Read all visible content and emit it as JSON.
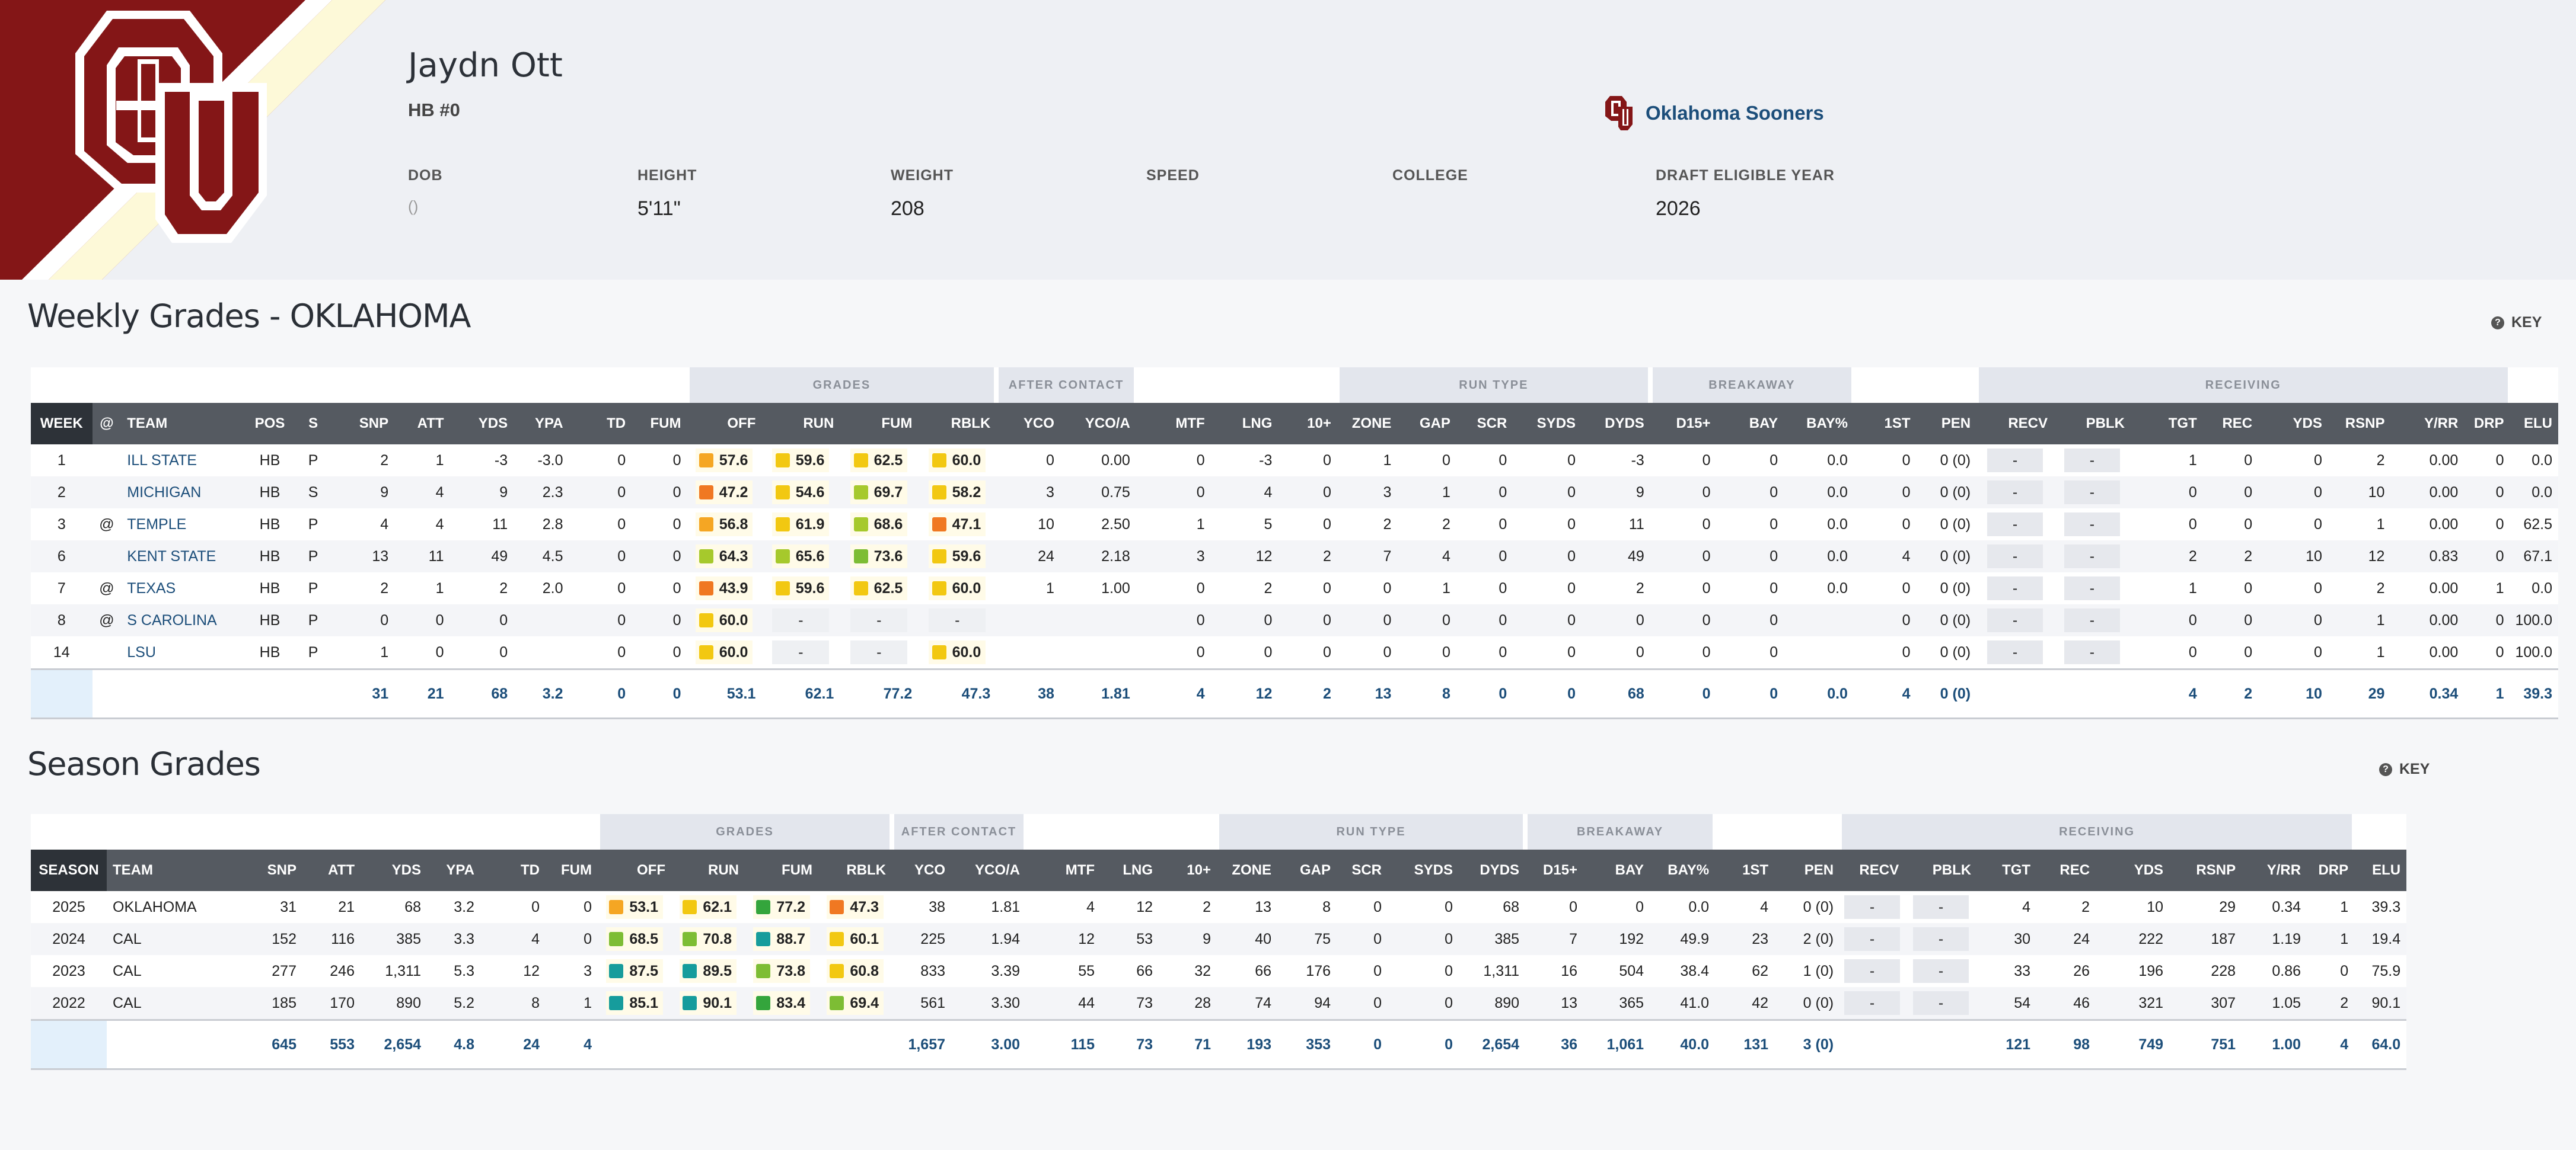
{
  "player": {
    "name": "Jaydn Ott",
    "position": "HB #0",
    "team": "Oklahoma Sooners",
    "info": [
      {
        "label": "DOB",
        "value": "()"
      },
      {
        "label": "HEIGHT",
        "value": "5'11\""
      },
      {
        "label": "WEIGHT",
        "value": "208"
      },
      {
        "label": "SPEED",
        "value": ""
      },
      {
        "label": "COLLEGE",
        "value": ""
      },
      {
        "label": "DRAFT ELIGIBLE YEAR",
        "value": "2026"
      }
    ]
  },
  "colors": {
    "brand": "#841617",
    "cream": "#fdf9d8",
    "grade_orange_dark": "#f07822",
    "grade_orange": "#f5a623",
    "grade_yellow": "#f2c811",
    "grade_yellowgreen": "#a6c92c",
    "grade_green": "#7dbd34",
    "grade_darkgreen": "#34a53c",
    "grade_teal": "#169c9c",
    "link": "#1c4e7a"
  },
  "key_label": "KEY",
  "weekly": {
    "title": "Weekly Grades - OKLAHOMA",
    "groups": {
      "grades": "GRADES",
      "after_contact": "AFTER CONTACT",
      "run_type": "RUN TYPE",
      "breakaway": "BREAKAWAY",
      "receiving": "RECEIVING"
    },
    "columns": [
      "WEEK",
      "@",
      "TEAM",
      "POS",
      "S",
      "SNP",
      "ATT",
      "YDS",
      "YPA",
      "TD",
      "FUM",
      "OFF",
      "RUN",
      "FUM",
      "RBLK",
      "YCO",
      "YCO/A",
      "MTF",
      "LNG",
      "10+",
      "ZONE",
      "GAP",
      "SCR",
      "SYDS",
      "DYDS",
      "D15+",
      "BAY",
      "BAY%",
      "1ST",
      "PEN",
      "RECV",
      "PBLK",
      "TGT",
      "REC",
      "YDS",
      "RSNP",
      "Y/RR",
      "DRP",
      "ELU"
    ],
    "rows": [
      [
        "1",
        "",
        "ILL STATE",
        "HB",
        "P",
        "2",
        "1",
        "-3",
        "-3.0",
        "0",
        "0",
        {
          "v": "57.6",
          "c": "grade_orange"
        },
        {
          "v": "59.6",
          "c": "grade_yellow"
        },
        {
          "v": "62.5",
          "c": "grade_yellow"
        },
        {
          "v": "60.0",
          "c": "grade_yellow"
        },
        "0",
        "0.00",
        "0",
        "-3",
        "0",
        "1",
        "0",
        "0",
        "0",
        "-3",
        "0",
        "0",
        "0.0",
        "0",
        "0 (0)",
        "-",
        "-",
        "1",
        "0",
        "0",
        "2",
        "0.00",
        "0",
        "0.0"
      ],
      [
        "2",
        "",
        "MICHIGAN",
        "HB",
        "S",
        "9",
        "4",
        "9",
        "2.3",
        "0",
        "0",
        {
          "v": "47.2",
          "c": "grade_orange_dark"
        },
        {
          "v": "54.6",
          "c": "grade_yellow"
        },
        {
          "v": "69.7",
          "c": "grade_yellowgreen"
        },
        {
          "v": "58.2",
          "c": "grade_yellow"
        },
        "3",
        "0.75",
        "0",
        "4",
        "0",
        "3",
        "1",
        "0",
        "0",
        "9",
        "0",
        "0",
        "0.0",
        "0",
        "0 (0)",
        "-",
        "-",
        "0",
        "0",
        "0",
        "10",
        "0.00",
        "0",
        "0.0"
      ],
      [
        "3",
        "@",
        "TEMPLE",
        "HB",
        "P",
        "4",
        "4",
        "11",
        "2.8",
        "0",
        "0",
        {
          "v": "56.8",
          "c": "grade_orange"
        },
        {
          "v": "61.9",
          "c": "grade_yellow"
        },
        {
          "v": "68.6",
          "c": "grade_yellowgreen"
        },
        {
          "v": "47.1",
          "c": "grade_orange_dark"
        },
        "10",
        "2.50",
        "1",
        "5",
        "0",
        "2",
        "2",
        "0",
        "0",
        "11",
        "0",
        "0",
        "0.0",
        "0",
        "0 (0)",
        "-",
        "-",
        "0",
        "0",
        "0",
        "1",
        "0.00",
        "0",
        "62.5"
      ],
      [
        "6",
        "",
        "KENT STATE",
        "HB",
        "P",
        "13",
        "11",
        "49",
        "4.5",
        "0",
        "0",
        {
          "v": "64.3",
          "c": "grade_yellowgreen"
        },
        {
          "v": "65.6",
          "c": "grade_yellowgreen"
        },
        {
          "v": "73.6",
          "c": "grade_green"
        },
        {
          "v": "59.6",
          "c": "grade_yellow"
        },
        "24",
        "2.18",
        "3",
        "12",
        "2",
        "7",
        "4",
        "0",
        "0",
        "49",
        "0",
        "0",
        "0.0",
        "4",
        "0 (0)",
        "-",
        "-",
        "2",
        "2",
        "10",
        "12",
        "0.83",
        "0",
        "67.1"
      ],
      [
        "7",
        "@",
        "TEXAS",
        "HB",
        "P",
        "2",
        "1",
        "2",
        "2.0",
        "0",
        "0",
        {
          "v": "43.9",
          "c": "grade_orange_dark"
        },
        {
          "v": "59.6",
          "c": "grade_yellow"
        },
        {
          "v": "62.5",
          "c": "grade_yellow"
        },
        {
          "v": "60.0",
          "c": "grade_yellow"
        },
        "1",
        "1.00",
        "0",
        "2",
        "0",
        "0",
        "1",
        "0",
        "0",
        "2",
        "0",
        "0",
        "0.0",
        "0",
        "0 (0)",
        "-",
        "-",
        "1",
        "0",
        "0",
        "2",
        "0.00",
        "1",
        "0.0"
      ],
      [
        "8",
        "@",
        "S CAROLINA",
        "HB",
        "P",
        "0",
        "0",
        "0",
        "",
        "0",
        "0",
        {
          "v": "60.0",
          "c": "grade_yellow"
        },
        {
          "v": "-"
        },
        {
          "v": "-"
        },
        {
          "v": "-"
        },
        "",
        "",
        "0",
        "0",
        "0",
        "0",
        "0",
        "0",
        "0",
        "0",
        "0",
        "0",
        "",
        "0",
        "0 (0)",
        "-",
        "-",
        "0",
        "0",
        "0",
        "1",
        "0.00",
        "0",
        "100.0"
      ],
      [
        "14",
        "",
        "LSU",
        "HB",
        "P",
        "1",
        "0",
        "0",
        "",
        "0",
        "0",
        {
          "v": "60.0",
          "c": "grade_yellow"
        },
        {
          "v": "-"
        },
        {
          "v": "-"
        },
        {
          "v": "60.0",
          "c": "grade_yellow"
        },
        "",
        "",
        "0",
        "0",
        "0",
        "0",
        "0",
        "0",
        "0",
        "0",
        "0",
        "0",
        "",
        "0",
        "0 (0)",
        "-",
        "-",
        "0",
        "0",
        "0",
        "1",
        "0.00",
        "0",
        "100.0"
      ]
    ],
    "totals": [
      "",
      "",
      "",
      "",
      "",
      "31",
      "21",
      "68",
      "3.2",
      "0",
      "0",
      "53.1",
      "62.1",
      "77.2",
      "47.3",
      "38",
      "1.81",
      "4",
      "12",
      "2",
      "13",
      "8",
      "0",
      "0",
      "68",
      "0",
      "0",
      "0.0",
      "4",
      "0 (0)",
      "",
      "",
      "4",
      "2",
      "10",
      "29",
      "0.34",
      "1",
      "39.3"
    ]
  },
  "season": {
    "title": "Season Grades",
    "groups": {
      "grades": "GRADES",
      "after_contact": "AFTER CONTACT",
      "run_type": "RUN TYPE",
      "breakaway": "BREAKAWAY",
      "receiving": "RECEIVING"
    },
    "columns": [
      "SEASON",
      "TEAM",
      "SNP",
      "ATT",
      "YDS",
      "YPA",
      "TD",
      "FUM",
      "OFF",
      "RUN",
      "FUM",
      "RBLK",
      "YCO",
      "YCO/A",
      "MTF",
      "LNG",
      "10+",
      "ZONE",
      "GAP",
      "SCR",
      "SYDS",
      "DYDS",
      "D15+",
      "BAY",
      "BAY%",
      "1ST",
      "PEN",
      "RECV",
      "PBLK",
      "TGT",
      "REC",
      "YDS",
      "RSNP",
      "Y/RR",
      "DRP",
      "ELU"
    ],
    "rows": [
      [
        "2025",
        "OKLAHOMA",
        "31",
        "21",
        "68",
        "3.2",
        "0",
        "0",
        {
          "v": "53.1",
          "c": "grade_orange"
        },
        {
          "v": "62.1",
          "c": "grade_yellow"
        },
        {
          "v": "77.2",
          "c": "grade_darkgreen"
        },
        {
          "v": "47.3",
          "c": "grade_orange_dark"
        },
        "38",
        "1.81",
        "4",
        "12",
        "2",
        "13",
        "8",
        "0",
        "0",
        "68",
        "0",
        "0",
        "0.0",
        "4",
        "0 (0)",
        "-",
        "-",
        "4",
        "2",
        "10",
        "29",
        "0.34",
        "1",
        "39.3"
      ],
      [
        "2024",
        "CAL",
        "152",
        "116",
        "385",
        "3.3",
        "4",
        "0",
        {
          "v": "68.5",
          "c": "grade_green"
        },
        {
          "v": "70.8",
          "c": "grade_green"
        },
        {
          "v": "88.7",
          "c": "grade_teal"
        },
        {
          "v": "60.1",
          "c": "grade_yellow"
        },
        "225",
        "1.94",
        "12",
        "53",
        "9",
        "40",
        "75",
        "0",
        "0",
        "385",
        "7",
        "192",
        "49.9",
        "23",
        "2 (0)",
        "-",
        "-",
        "30",
        "24",
        "222",
        "187",
        "1.19",
        "1",
        "19.4"
      ],
      [
        "2023",
        "CAL",
        "277",
        "246",
        "1,311",
        "5.3",
        "12",
        "3",
        {
          "v": "87.5",
          "c": "grade_teal"
        },
        {
          "v": "89.5",
          "c": "grade_teal"
        },
        {
          "v": "73.8",
          "c": "grade_green"
        },
        {
          "v": "60.8",
          "c": "grade_yellow"
        },
        "833",
        "3.39",
        "55",
        "66",
        "32",
        "66",
        "176",
        "0",
        "0",
        "1,311",
        "16",
        "504",
        "38.4",
        "62",
        "1 (0)",
        "-",
        "-",
        "33",
        "26",
        "196",
        "228",
        "0.86",
        "0",
        "75.9"
      ],
      [
        "2022",
        "CAL",
        "185",
        "170",
        "890",
        "5.2",
        "8",
        "1",
        {
          "v": "85.1",
          "c": "grade_teal"
        },
        {
          "v": "90.1",
          "c": "grade_teal"
        },
        {
          "v": "83.4",
          "c": "grade_darkgreen"
        },
        {
          "v": "69.4",
          "c": "grade_green"
        },
        "561",
        "3.30",
        "44",
        "73",
        "28",
        "74",
        "94",
        "0",
        "0",
        "890",
        "13",
        "365",
        "41.0",
        "42",
        "0 (0)",
        "-",
        "-",
        "54",
        "46",
        "321",
        "307",
        "1.05",
        "2",
        "90.1"
      ]
    ],
    "totals": [
      "",
      "",
      "645",
      "553",
      "2,654",
      "4.8",
      "24",
      "4",
      "",
      "",
      "",
      "",
      "1,657",
      "3.00",
      "115",
      "73",
      "71",
      "193",
      "353",
      "0",
      "0",
      "2,654",
      "36",
      "1,061",
      "40.0",
      "131",
      "3 (0)",
      "",
      "",
      "121",
      "98",
      "749",
      "751",
      "1.00",
      "4",
      "64.0"
    ]
  }
}
